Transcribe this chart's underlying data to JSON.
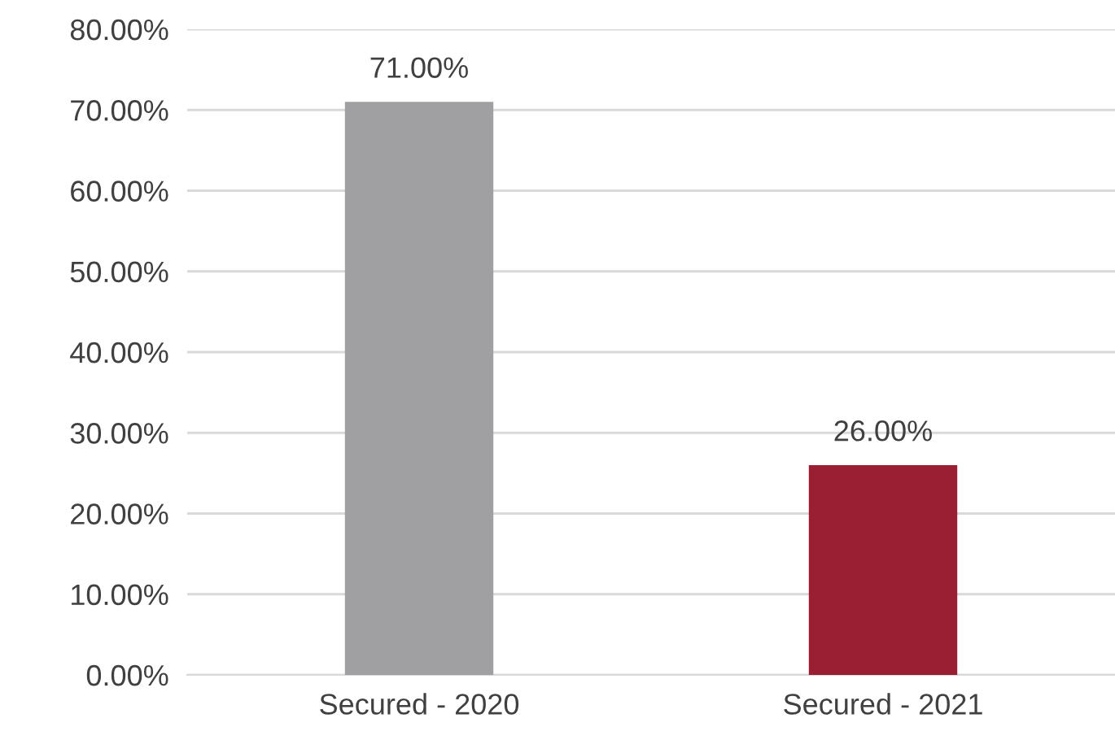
{
  "chart_data": {
    "type": "bar",
    "categories": [
      "Secured - 2020",
      "Secured - 2021"
    ],
    "values": [
      71,
      26
    ],
    "colors": [
      "#a0a0a2",
      "#9b1f32"
    ],
    "value_labels": [
      "71.00%",
      "26.00%"
    ],
    "ylim": [
      0,
      80
    ],
    "yticks": [
      {
        "value": 0,
        "label": "0.00%"
      },
      {
        "value": 10,
        "label": "10.00%"
      },
      {
        "value": 20,
        "label": "20.00%"
      },
      {
        "value": 30,
        "label": "30.00%"
      },
      {
        "value": 40,
        "label": "40.00%"
      },
      {
        "value": 50,
        "label": "50.00%"
      },
      {
        "value": 60,
        "label": "60.00%"
      },
      {
        "value": 70,
        "label": "70.00%"
      },
      {
        "value": 80,
        "label": "80.00%"
      }
    ],
    "grid": "y"
  }
}
